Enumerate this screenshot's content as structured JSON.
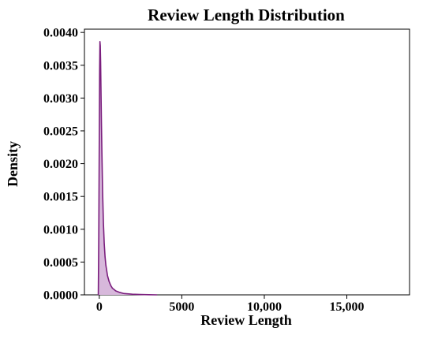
{
  "chart_data": {
    "type": "area",
    "title": "Review Length Distribution",
    "xlabel": "Review Length",
    "ylabel": "Density",
    "xlim": [
      -900,
      18800
    ],
    "ylim": [
      0,
      0.00405
    ],
    "x_ticks": [
      {
        "value": 0,
        "label": "0"
      },
      {
        "value": 5000,
        "label": "5000"
      },
      {
        "value": 10000,
        "label": "10,000"
      },
      {
        "value": 15000,
        "label": "15,000"
      }
    ],
    "y_ticks": [
      {
        "value": 0.0,
        "label": "0.0000"
      },
      {
        "value": 0.0005,
        "label": "0.0005"
      },
      {
        "value": 0.001,
        "label": "0.0010"
      },
      {
        "value": 0.0015,
        "label": "0.0015"
      },
      {
        "value": 0.002,
        "label": "0.0020"
      },
      {
        "value": 0.0025,
        "label": "0.0025"
      },
      {
        "value": 0.003,
        "label": "0.0030"
      },
      {
        "value": 0.0035,
        "label": "0.0035"
      },
      {
        "value": 0.004,
        "label": "0.0040"
      }
    ],
    "grid": false,
    "legend": "none",
    "colors": {
      "line": "#7b1f7e",
      "fill": "#d7b8db"
    },
    "series": [
      {
        "x": [
          -60,
          -30,
          0,
          20,
          40,
          60,
          80,
          100,
          130,
          160,
          200,
          250,
          300,
          350,
          400,
          500,
          600,
          700,
          800,
          1000,
          1200,
          1500,
          2000,
          2500,
          3000,
          3500
        ],
        "y": [
          0.0,
          0.0009,
          0.0024,
          0.0034,
          0.00386,
          0.0038,
          0.00355,
          0.00318,
          0.00262,
          0.00215,
          0.00158,
          0.0011,
          0.00078,
          0.00058,
          0.00045,
          0.00029,
          0.0002,
          0.00014,
          0.0001,
          6e-05,
          4e-05,
          2e-05,
          1e-05,
          5e-06,
          2e-06,
          0.0
        ]
      }
    ]
  }
}
